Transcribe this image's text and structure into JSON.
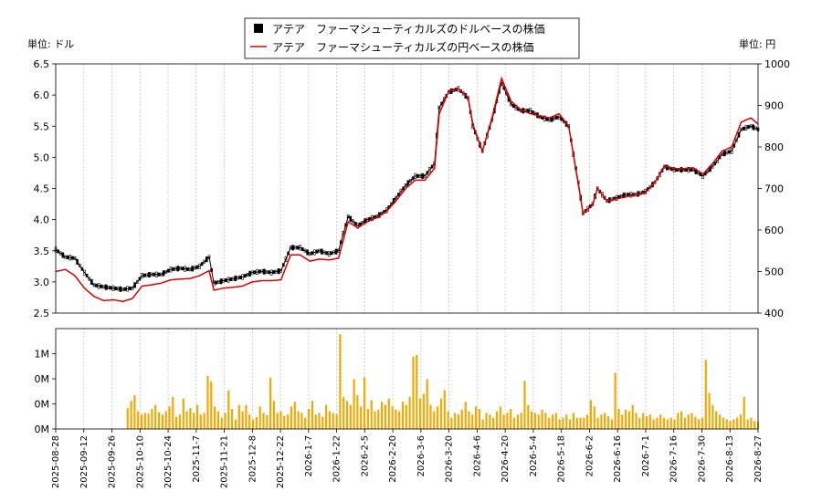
{
  "chart_data": {
    "type": "line",
    "legend": {
      "placement": "top-center",
      "items": [
        {
          "label": "アテア　ファーマシューティカルズのドルベースの株価",
          "marker": "black-square",
          "color": "#000000"
        },
        {
          "label": "アテア　ファーマシューティカルズの円ベースの株価",
          "marker": "red-line",
          "color": "#dd0000"
        }
      ]
    },
    "left_unit": "単位: ドル",
    "right_unit": "単位: 円",
    "y_left": {
      "min": 2.5,
      "max": 6.5,
      "ticks": [
        "2.5",
        "3.0",
        "3.5",
        "4.0",
        "4.5",
        "5.0",
        "5.5",
        "6.0",
        "6.5"
      ]
    },
    "y_right": {
      "min": 400,
      "max": 1000,
      "ticks": [
        "400",
        "500",
        "600",
        "700",
        "800",
        "900",
        "1000"
      ]
    },
    "volume_axis": {
      "min": 0,
      "max": 1.25,
      "ticks": [
        {
          "v": 0,
          "label": "0M"
        },
        {
          "v": 0.3125,
          "label": "0M"
        },
        {
          "v": 0.625,
          "label": "0M"
        },
        {
          "v": 0.9375,
          "label": "1M"
        }
      ]
    },
    "x_dates": [
      "2025-08-28",
      "2025-09-12",
      "2025-09-26",
      "2025-10-10",
      "2025-10-24",
      "2025-11-7",
      "2025-11-21",
      "2025-12-8",
      "2025-12-22",
      "2026-1-7",
      "2026-1-22",
      "2026-2-5",
      "2026-2-20",
      "2026-3-6",
      "2026-3-20",
      "2026-4-6",
      "2026-4-20",
      "2026-5-4",
      "2026-5-18",
      "2026-6-2",
      "2026-6-16",
      "2026-7-1",
      "2026-7-16",
      "2026-7-30",
      "2026-8-13",
      "2026-8-27"
    ],
    "usd_series": {
      "name": "アテア　ファーマシューティカルズのドルベースの株価",
      "points": [
        [
          0,
          3.52
        ],
        [
          4,
          3.4
        ],
        [
          8,
          3.38
        ],
        [
          12,
          3.15
        ],
        [
          16,
          2.95
        ],
        [
          20,
          2.92
        ],
        [
          24,
          2.9
        ],
        [
          28,
          2.88
        ],
        [
          32,
          2.9
        ],
        [
          36,
          3.1
        ],
        [
          40,
          3.12
        ],
        [
          44,
          3.12
        ],
        [
          48,
          3.2
        ],
        [
          52,
          3.22
        ],
        [
          56,
          3.2
        ],
        [
          60,
          3.25
        ],
        [
          64,
          3.4
        ],
        [
          66,
          2.98
        ],
        [
          70,
          3.02
        ],
        [
          74,
          3.05
        ],
        [
          78,
          3.08
        ],
        [
          82,
          3.15
        ],
        [
          86,
          3.17
        ],
        [
          90,
          3.15
        ],
        [
          94,
          3.18
        ],
        [
          98,
          3.55
        ],
        [
          102,
          3.55
        ],
        [
          106,
          3.45
        ],
        [
          110,
          3.5
        ],
        [
          114,
          3.45
        ],
        [
          118,
          3.5
        ],
        [
          122,
          4.05
        ],
        [
          126,
          3.9
        ],
        [
          130,
          4.0
        ],
        [
          134,
          4.05
        ],
        [
          138,
          4.15
        ],
        [
          142,
          4.35
        ],
        [
          146,
          4.55
        ],
        [
          150,
          4.7
        ],
        [
          154,
          4.7
        ],
        [
          158,
          4.9
        ],
        [
          160,
          5.8
        ],
        [
          164,
          6.05
        ],
        [
          168,
          6.1
        ],
        [
          172,
          5.95
        ],
        [
          174,
          5.5
        ],
        [
          178,
          5.1
        ],
        [
          182,
          5.6
        ],
        [
          186,
          6.2
        ],
        [
          190,
          5.85
        ],
        [
          194,
          5.75
        ],
        [
          198,
          5.75
        ],
        [
          202,
          5.65
        ],
        [
          206,
          5.6
        ],
        [
          210,
          5.65
        ],
        [
          214,
          5.5
        ],
        [
          218,
          4.6
        ],
        [
          220,
          4.1
        ],
        [
          224,
          4.25
        ],
        [
          226,
          4.5
        ],
        [
          230,
          4.3
        ],
        [
          234,
          4.35
        ],
        [
          238,
          4.4
        ],
        [
          242,
          4.4
        ],
        [
          246,
          4.45
        ],
        [
          250,
          4.6
        ],
        [
          254,
          4.85
        ],
        [
          258,
          4.8
        ],
        [
          262,
          4.8
        ],
        [
          266,
          4.8
        ],
        [
          270,
          4.7
        ],
        [
          274,
          4.85
        ],
        [
          278,
          5.05
        ],
        [
          282,
          5.1
        ],
        [
          286,
          5.45
        ],
        [
          290,
          5.5
        ],
        [
          293,
          5.45
        ]
      ]
    },
    "jpy_series": {
      "name": "アテア　ファーマシューティカルズの円ベースの株価",
      "points": [
        [
          0,
          500
        ],
        [
          4,
          505
        ],
        [
          8,
          490
        ],
        [
          12,
          460
        ],
        [
          16,
          440
        ],
        [
          20,
          430
        ],
        [
          24,
          432
        ],
        [
          28,
          428
        ],
        [
          32,
          435
        ],
        [
          36,
          465
        ],
        [
          40,
          468
        ],
        [
          44,
          472
        ],
        [
          48,
          480
        ],
        [
          52,
          482
        ],
        [
          56,
          483
        ],
        [
          60,
          490
        ],
        [
          64,
          502
        ],
        [
          66,
          455
        ],
        [
          70,
          460
        ],
        [
          74,
          462
        ],
        [
          78,
          465
        ],
        [
          82,
          475
        ],
        [
          86,
          478
        ],
        [
          90,
          478
        ],
        [
          94,
          480
        ],
        [
          98,
          540
        ],
        [
          102,
          540
        ],
        [
          106,
          525
        ],
        [
          110,
          530
        ],
        [
          114,
          528
        ],
        [
          118,
          532
        ],
        [
          122,
          620
        ],
        [
          126,
          605
        ],
        [
          130,
          620
        ],
        [
          134,
          630
        ],
        [
          138,
          645
        ],
        [
          142,
          670
        ],
        [
          146,
          700
        ],
        [
          150,
          720
        ],
        [
          154,
          720
        ],
        [
          158,
          748
        ],
        [
          160,
          880
        ],
        [
          164,
          935
        ],
        [
          168,
          940
        ],
        [
          172,
          920
        ],
        [
          174,
          855
        ],
        [
          178,
          790
        ],
        [
          182,
          870
        ],
        [
          186,
          965
        ],
        [
          190,
          910
        ],
        [
          194,
          890
        ],
        [
          198,
          880
        ],
        [
          202,
          875
        ],
        [
          206,
          870
        ],
        [
          210,
          880
        ],
        [
          214,
          850
        ],
        [
          218,
          710
        ],
        [
          220,
          640
        ],
        [
          224,
          660
        ],
        [
          226,
          700
        ],
        [
          230,
          670
        ],
        [
          234,
          675
        ],
        [
          238,
          680
        ],
        [
          242,
          685
        ],
        [
          246,
          690
        ],
        [
          250,
          715
        ],
        [
          254,
          755
        ],
        [
          258,
          748
        ],
        [
          262,
          748
        ],
        [
          266,
          750
        ],
        [
          270,
          735
        ],
        [
          274,
          760
        ],
        [
          278,
          790
        ],
        [
          282,
          800
        ],
        [
          286,
          860
        ],
        [
          290,
          870
        ],
        [
          293,
          855
        ]
      ]
    },
    "volume_series": {
      "name": "volume",
      "unit": "M",
      "values": [
        0.26,
        0.35,
        0.42,
        0.22,
        0.18,
        0.2,
        0.19,
        0.25,
        0.3,
        0.21,
        0.18,
        0.22,
        0.28,
        0.4,
        0.15,
        0.18,
        0.38,
        0.22,
        0.26,
        0.2,
        0.3,
        0.18,
        0.2,
        0.66,
        0.59,
        0.28,
        0.22,
        0.14,
        0.2,
        0.48,
        0.25,
        0.12,
        0.3,
        0.22,
        0.3,
        0.18,
        0.12,
        0.15,
        0.28,
        0.2,
        0.17,
        0.64,
        0.35,
        0.2,
        0.22,
        0.16,
        0.18,
        0.28,
        0.34,
        0.22,
        0.2,
        0.14,
        0.25,
        0.35,
        0.18,
        0.2,
        0.15,
        0.3,
        0.22,
        0.2,
        0.18,
        1.18,
        0.4,
        0.35,
        0.3,
        0.62,
        0.42,
        0.28,
        0.64,
        0.25,
        0.36,
        0.22,
        0.24,
        0.34,
        0.3,
        0.38,
        0.28,
        0.24,
        0.22,
        0.34,
        0.3,
        0.4,
        0.9,
        0.92,
        0.38,
        0.44,
        0.62,
        0.3,
        0.22,
        0.28,
        0.38,
        0.48,
        0.22,
        0.14,
        0.2,
        0.18,
        0.24,
        0.34,
        0.22,
        0.18,
        0.28,
        0.25,
        0.12,
        0.2,
        0.18,
        0.14,
        0.22,
        0.28,
        0.18,
        0.2,
        0.25,
        0.14,
        0.18,
        0.2,
        0.6,
        0.3,
        0.22,
        0.2,
        0.18,
        0.24,
        0.2,
        0.14,
        0.18,
        0.2,
        0.12,
        0.14,
        0.18,
        0.12,
        0.2,
        0.14,
        0.14,
        0.14,
        0.18,
        0.36,
        0.28,
        0.14,
        0.18,
        0.2,
        0.16,
        0.12,
        0.7,
        0.25,
        0.18,
        0.24,
        0.22,
        0.3,
        0.2,
        0.14,
        0.2,
        0.16,
        0.18,
        0.12,
        0.14,
        0.18,
        0.14,
        0.12,
        0.14,
        0.12,
        0.2,
        0.22,
        0.14,
        0.18,
        0.2,
        0.15,
        0.12,
        0.14,
        0.86,
        0.45,
        0.3,
        0.22,
        0.18,
        0.14,
        0.12,
        0.1,
        0.12,
        0.14,
        0.18,
        0.4,
        0.12,
        0.14,
        0.1,
        0.09
      ]
    }
  }
}
